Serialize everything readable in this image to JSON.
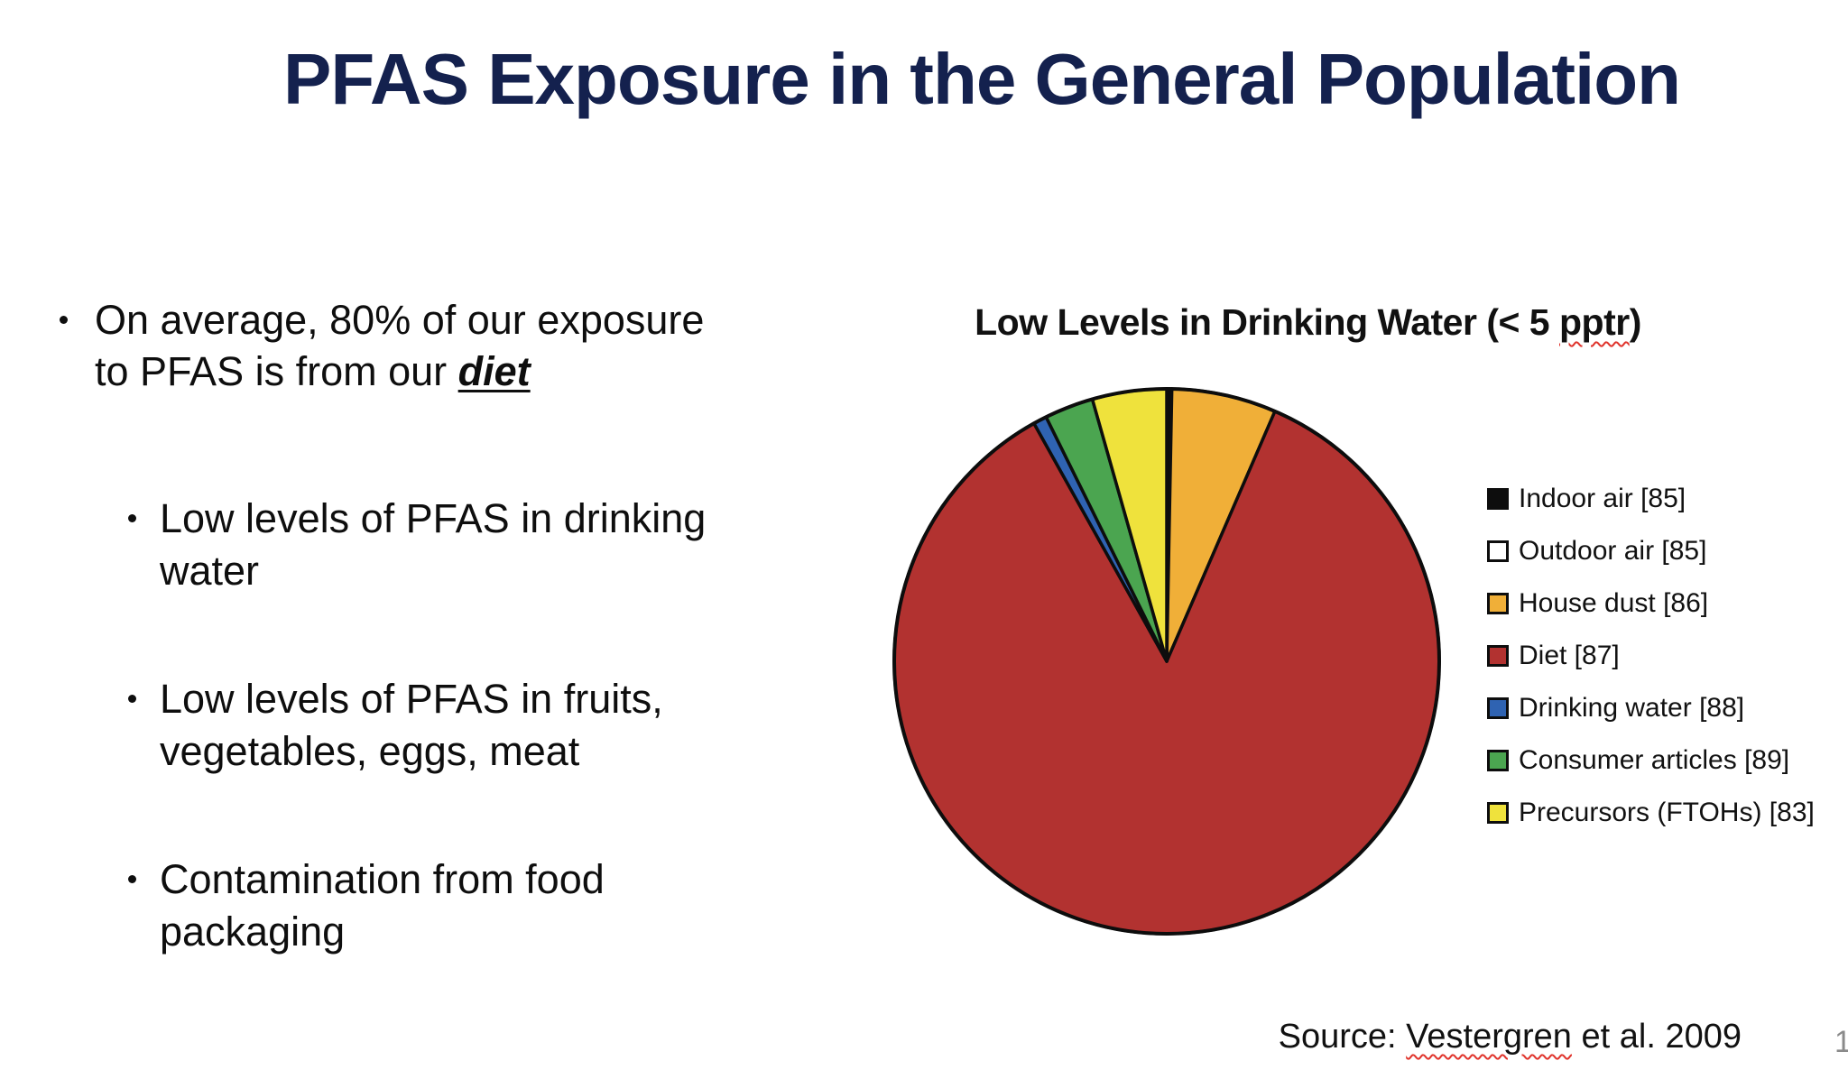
{
  "slide": {
    "title": "PFAS Exposure in the General Population",
    "page_number": "1"
  },
  "bullets": {
    "main": {
      "text_before": "On average, 80% of our exposure to PFAS is from our ",
      "emphasis": "diet"
    },
    "sub": [
      "Low levels of PFAS in drinking water",
      "Low levels of PFAS in fruits, vegetables, eggs, meat",
      "Contamination from food packaging"
    ]
  },
  "chart": {
    "title_before": "Low Levels in Drinking Water (< 5 ",
    "title_misspelled": "pptr",
    "title_after": ")"
  },
  "source": {
    "prefix": "Source: ",
    "misspelled": "Vestergren",
    "suffix": " et al. 2009"
  },
  "chart_data": {
    "type": "pie",
    "title": "Low Levels in Drinking Water (< 5 pptr)",
    "unit": "percent (estimated from slice angles)",
    "start_angle_deg": 0,
    "direction": "clockwise",
    "legend_position": "right",
    "outline_color": "#0d0d0d",
    "slices": [
      {
        "label": "Indoor air [85]",
        "value": 0.15,
        "color": "#0d0d0d"
      },
      {
        "label": "Outdoor air [85]",
        "value": 0.15,
        "color": "#ffffff"
      },
      {
        "label": "House dust [86]",
        "value": 6.2,
        "color": "#F0AF38"
      },
      {
        "label": "Diet [87]",
        "value": 85.4,
        "color": "#B23230"
      },
      {
        "label": "Drinking water [88]",
        "value": 0.8,
        "color": "#2F63B2"
      },
      {
        "label": "Consumer articles [89]",
        "value": 2.9,
        "color": "#4BA550"
      },
      {
        "label": "Precursors (FTOHs) [83]",
        "value": 4.4,
        "color": "#EFE23C"
      }
    ]
  }
}
